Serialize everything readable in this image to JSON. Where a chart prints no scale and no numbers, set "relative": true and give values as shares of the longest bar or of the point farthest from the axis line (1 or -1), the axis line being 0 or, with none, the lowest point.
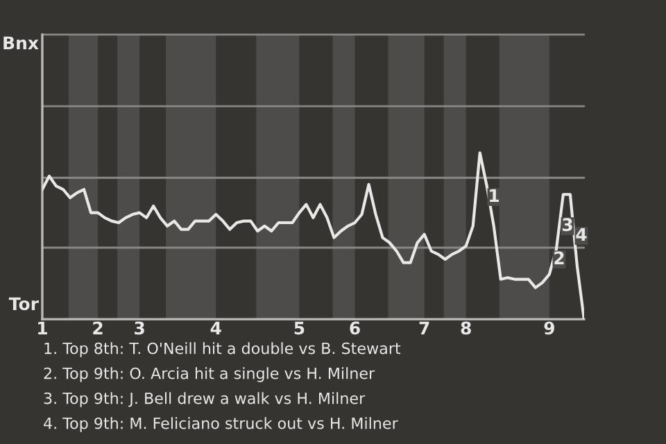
{
  "chart_data": {
    "type": "line",
    "categories": [
      "1",
      null,
      null,
      null,
      null,
      null,
      null,
      null,
      "2",
      null,
      null,
      null,
      null,
      null,
      "3",
      null,
      null,
      null,
      null,
      null,
      null,
      null,
      null,
      null,
      null,
      "4",
      null,
      null,
      null,
      null,
      null,
      null,
      null,
      null,
      null,
      null,
      null,
      "5",
      null,
      null,
      null,
      null,
      null,
      null,
      null,
      "6",
      null,
      null,
      null,
      null,
      null,
      null,
      null,
      null,
      null,
      "7",
      null,
      null,
      null,
      null,
      null,
      "8",
      null,
      null,
      null,
      null,
      null,
      null,
      null,
      null,
      null,
      null,
      null,
      "9",
      null,
      null,
      null,
      null,
      null
    ],
    "relative": true,
    "series": [
      {
        "color": "#e8e8e8",
        "values": [
          0.78,
          0.86,
          0.8,
          0.78,
          0.73,
          0.76,
          0.78,
          0.64,
          0.64,
          0.61,
          0.59,
          0.58,
          0.61,
          0.63,
          0.64,
          0.61,
          0.68,
          0.61,
          0.56,
          0.59,
          0.54,
          0.54,
          0.59,
          0.59,
          0.59,
          0.63,
          0.59,
          0.54,
          0.58,
          0.59,
          0.59,
          0.53,
          0.56,
          0.53,
          0.58,
          0.58,
          0.58,
          0.64,
          0.69,
          0.61,
          0.69,
          0.61,
          0.49,
          0.53,
          0.56,
          0.58,
          0.63,
          0.81,
          0.63,
          0.49,
          0.46,
          0.41,
          0.34,
          0.34,
          0.46,
          0.51,
          0.41,
          0.39,
          0.36,
          0.39,
          0.41,
          0.44,
          0.56,
          1,
          0.8,
          0.56,
          0.24,
          0.25,
          0.24,
          0.24,
          0.24,
          0.19,
          0.22,
          0.27,
          0.42,
          0.75,
          0.75,
          0.32,
          0
        ],
        "line_style": "solid"
      }
    ],
    "ref_lines": [
      {
        "axis": "y",
        "value": 0.43,
        "color": "#8a8886"
      },
      {
        "axis": "y",
        "value": 0.85,
        "color": "#8a8886"
      },
      {
        "axis": "y",
        "value": 1.28,
        "color": "#8a8886"
      },
      {
        "axis": "y",
        "value": 1.71,
        "color": "#8a8886"
      }
    ],
    "annotations": [
      "Bnx",
      "Tor",
      "1",
      "2",
      "3",
      "4",
      "1. Top 8th: T. O'Neill hit a double vs B. Stewart",
      "2. Top 9th: O. Arcia hit a single vs H. Milner",
      "3. Top 9th: J. Bell drew a walk vs H. Milner",
      "4. Top 9th: M. Feliciano struck out vs H. Milner"
    ]
  }
}
